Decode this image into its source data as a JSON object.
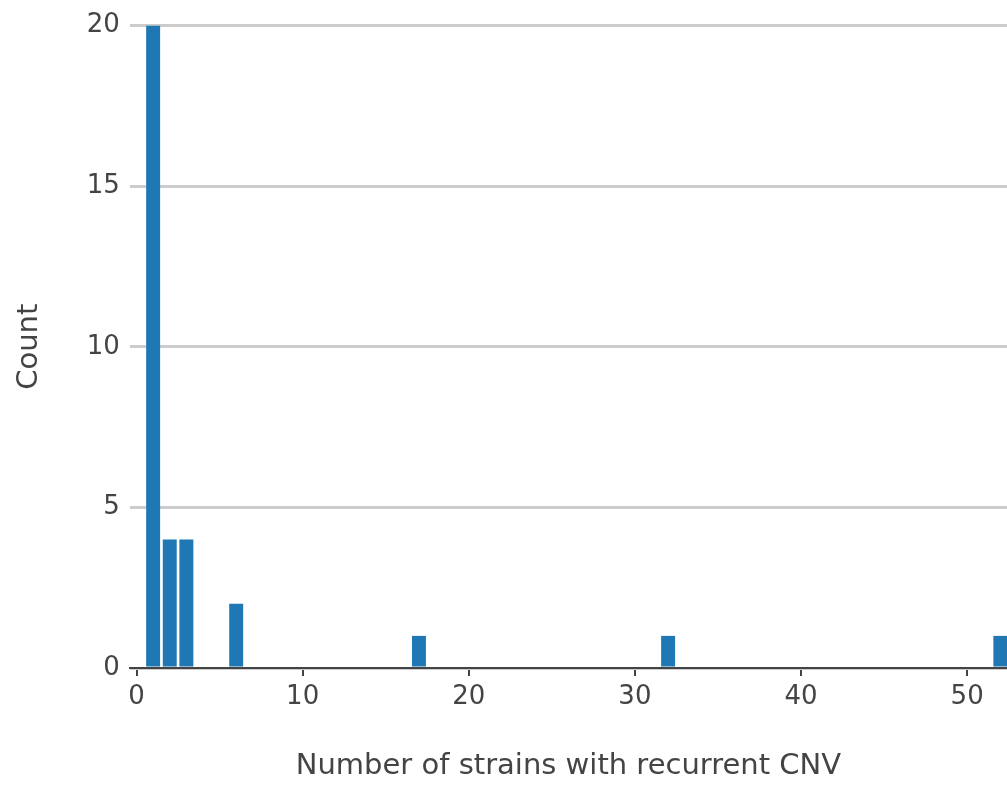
{
  "chart_data": {
    "type": "bar",
    "xlabel": "Number of strains with recurrent CNV",
    "ylabel": "Count",
    "x": [
      1,
      2,
      3,
      6,
      17,
      32,
      52
    ],
    "values": [
      20,
      4,
      4,
      2,
      1,
      1,
      1
    ],
    "color": "#1f77b4",
    "xlim": [
      -0.4,
      52.4
    ],
    "xticks": [
      0,
      10,
      20,
      30,
      40,
      50
    ],
    "ylim": [
      0,
      20
    ],
    "yticks": [
      0,
      5,
      10,
      15,
      20
    ],
    "grid": "y",
    "legend": false
  }
}
